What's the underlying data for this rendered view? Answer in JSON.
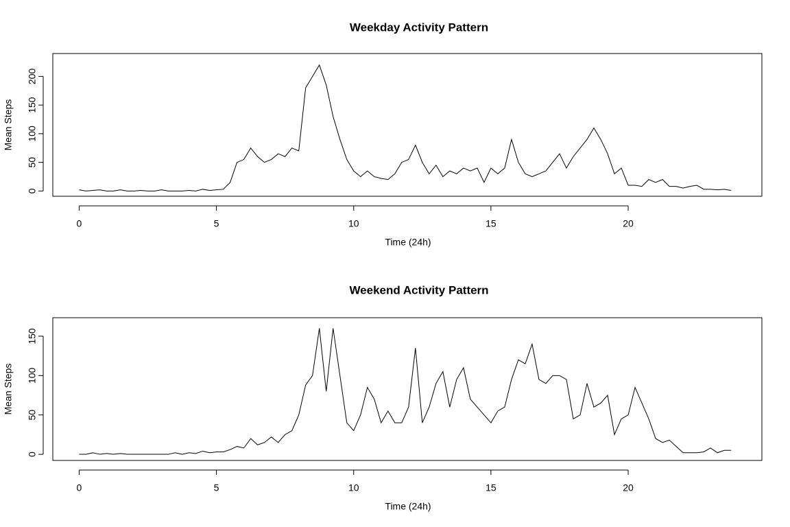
{
  "chart_data": [
    {
      "type": "line",
      "title": "Weekday Activity Pattern",
      "xlabel": "Time (24h)",
      "ylabel": "Mean Steps",
      "color": "#000000",
      "x": [
        0,
        0.25,
        0.5,
        0.75,
        1,
        1.25,
        1.5,
        1.75,
        2,
        2.25,
        2.5,
        2.75,
        3,
        3.25,
        3.5,
        3.75,
        4,
        4.25,
        4.5,
        4.75,
        5,
        5.25,
        5.5,
        5.75,
        6,
        6.25,
        6.5,
        6.75,
        7,
        7.25,
        7.5,
        7.75,
        8,
        8.25,
        8.5,
        8.75,
        9,
        9.25,
        9.5,
        9.75,
        10,
        10.25,
        10.5,
        10.75,
        11,
        11.25,
        11.5,
        11.75,
        12,
        12.25,
        12.5,
        12.75,
        13,
        13.25,
        13.5,
        13.75,
        14,
        14.25,
        14.5,
        14.75,
        15,
        15.25,
        15.5,
        15.75,
        16,
        16.25,
        16.5,
        16.75,
        17,
        17.25,
        17.5,
        17.75,
        18,
        18.25,
        18.5,
        18.75,
        19,
        19.25,
        19.5,
        19.75,
        20,
        20.25,
        20.5,
        20.75,
        21,
        21.25,
        21.5,
        21.75,
        22,
        22.25,
        22.5,
        22.75,
        23,
        23.25,
        23.5,
        23.75
      ],
      "values": [
        2,
        0,
        1,
        2,
        0,
        0,
        2,
        0,
        0,
        1,
        0,
        0,
        2,
        0,
        0,
        0,
        1,
        0,
        3,
        1,
        2,
        3,
        15,
        50,
        55,
        75,
        60,
        50,
        55,
        65,
        60,
        75,
        70,
        180,
        200,
        220,
        185,
        130,
        90,
        55,
        35,
        25,
        35,
        25,
        22,
        20,
        30,
        50,
        55,
        80,
        50,
        30,
        45,
        25,
        35,
        30,
        40,
        35,
        40,
        15,
        40,
        30,
        40,
        90,
        50,
        30,
        25,
        30,
        35,
        50,
        65,
        40,
        60,
        75,
        90,
        110,
        90,
        65,
        30,
        40,
        10,
        10,
        8,
        20,
        15,
        20,
        8,
        8,
        5,
        8,
        10,
        3,
        3,
        2,
        3,
        1
      ],
      "xlim": [
        -0.96,
        24.87
      ],
      "xticks": [
        0,
        5,
        10,
        15,
        20
      ],
      "ylim": [
        -9.2,
        240
      ],
      "yticks": [
        0,
        50,
        100,
        150,
        200
      ]
    },
    {
      "type": "line",
      "title": "Weekend Activity Pattern",
      "xlabel": "Time (24h)",
      "ylabel": "Mean Steps",
      "color": "#000000",
      "x": [
        0,
        0.25,
        0.5,
        0.75,
        1,
        1.25,
        1.5,
        1.75,
        2,
        2.25,
        2.5,
        2.75,
        3,
        3.25,
        3.5,
        3.75,
        4,
        4.25,
        4.5,
        4.75,
        5,
        5.25,
        5.5,
        5.75,
        6,
        6.25,
        6.5,
        6.75,
        7,
        7.25,
        7.5,
        7.75,
        8,
        8.25,
        8.5,
        8.75,
        9,
        9.25,
        9.5,
        9.75,
        10,
        10.25,
        10.5,
        10.75,
        11,
        11.25,
        11.5,
        11.75,
        12,
        12.25,
        12.5,
        12.75,
        13,
        13.25,
        13.5,
        13.75,
        14,
        14.25,
        14.5,
        14.75,
        15,
        15.25,
        15.5,
        15.75,
        16,
        16.25,
        16.5,
        16.75,
        17,
        17.25,
        17.5,
        17.75,
        18,
        18.25,
        18.5,
        18.75,
        19,
        19.25,
        19.5,
        19.75,
        20,
        20.25,
        20.5,
        20.75,
        21,
        21.25,
        21.5,
        21.75,
        22,
        22.25,
        22.5,
        22.75,
        23,
        23.25,
        23.5,
        23.75
      ],
      "values": [
        0,
        0,
        2,
        0,
        1,
        0,
        1,
        0,
        0,
        0,
        0,
        0,
        0,
        0,
        2,
        0,
        2,
        1,
        4,
        2,
        3,
        3,
        6,
        10,
        8,
        20,
        12,
        15,
        22,
        15,
        25,
        30,
        50,
        88,
        100,
        160,
        80,
        160,
        100,
        40,
        30,
        50,
        85,
        70,
        40,
        55,
        40,
        40,
        60,
        135,
        40,
        60,
        90,
        105,
        60,
        95,
        110,
        70,
        60,
        50,
        40,
        55,
        60,
        95,
        120,
        115,
        140,
        95,
        90,
        100,
        100,
        95,
        45,
        50,
        90,
        60,
        65,
        75,
        25,
        45,
        50,
        85,
        65,
        45,
        20,
        15,
        18,
        10,
        2,
        2,
        2,
        3,
        8,
        2,
        5,
        5
      ],
      "xlim": [
        -0.96,
        24.87
      ],
      "xticks": [
        0,
        5,
        10,
        15,
        20
      ],
      "ylim": [
        -7.8,
        173.5
      ],
      "yticks": [
        0,
        50,
        100,
        150
      ]
    }
  ]
}
